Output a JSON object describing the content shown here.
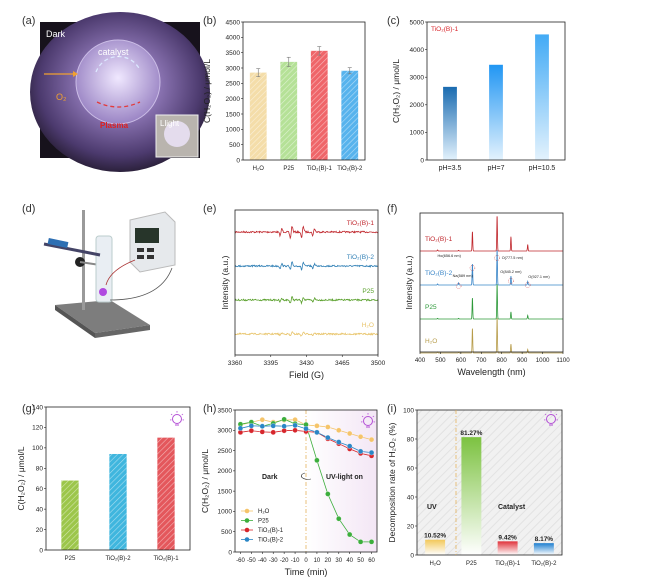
{
  "panel_labels": [
    "(a)",
    "(b)",
    "(c)",
    "(d)",
    "(e)",
    "(f)",
    "(g)",
    "(h)",
    "(i)"
  ],
  "photo_a": {
    "labels": {
      "dark": "Dark",
      "catalyst": "catalyst",
      "o2": "O₂",
      "plasma": "Plasma",
      "inset": "Llight"
    }
  },
  "chart_data": [
    {
      "id": "b",
      "type": "bar",
      "ylabel": "C(H₂O₂) / μmol/L",
      "categories": [
        "H₂O",
        "P25",
        "TiO₂(B)-1",
        "TiO₂(B)-2"
      ],
      "values": [
        2850,
        3200,
        3560,
        2910
      ],
      "errors": [
        130,
        150,
        140,
        100
      ],
      "colors": [
        "#f2d79a",
        "#a8dc85",
        "#ec4a4f",
        "#3aa6ea"
      ],
      "ylim": [
        0,
        4500
      ],
      "yticks": [
        0,
        500,
        1000,
        1500,
        2000,
        2500,
        3000,
        3500,
        4000,
        4500
      ]
    },
    {
      "id": "c",
      "type": "bar",
      "ylabel": "C(H₂O₂) / μmol/L",
      "annotation": "TiO₂(B)-1",
      "annotation_color": "#d9262c",
      "categories": [
        "pH=3.5",
        "pH=7",
        "pH=10.5"
      ],
      "values": [
        2650,
        3450,
        4550
      ],
      "colors": [
        "#1a6bb0",
        "#2196f3",
        "#42aaf5"
      ],
      "ylim": [
        0,
        5000
      ],
      "yticks": [
        0,
        1000,
        2000,
        3000,
        4000,
        5000
      ]
    },
    {
      "id": "e",
      "type": "line",
      "xlabel": "Field (G)",
      "ylabel": "Intensity (a.u.)",
      "xlim": [
        3360,
        3500
      ],
      "xticks": [
        3360,
        3395,
        3430,
        3465,
        3500
      ],
      "peak_fields": [
        3405,
        3415,
        3426,
        3437
      ],
      "series": [
        {
          "name": "TiO₂(B)-1",
          "color": "#c0272d",
          "amplitude": 1.0
        },
        {
          "name": "TiO₂(B)-2",
          "color": "#2f7fb5",
          "amplitude": 0.6
        },
        {
          "name": "P25",
          "color": "#5aa02c",
          "amplitude": 0.5
        },
        {
          "name": "H₂O",
          "color": "#e8c46a",
          "amplitude": 0.35
        }
      ]
    },
    {
      "id": "f",
      "type": "line",
      "xlabel": "Wavelength (nm)",
      "ylabel": "Intensity (a.u.)",
      "xlim": [
        400,
        1100
      ],
      "xticks": [
        400,
        500,
        600,
        700,
        800,
        900,
        1000,
        1100
      ],
      "peaks_nm": [
        486,
        589,
        656.6,
        777.5,
        845.2,
        927.1
      ],
      "annotations": [
        "Hα(656.6 nm)",
        "O(777.5 nm)",
        "Na(589 nm)",
        "O(845.2 nm)",
        "O(927.1 nm)"
      ],
      "series": [
        {
          "name": "TiO₂(B)-1",
          "color": "#c0272d",
          "peak_heights": [
            0.03,
            0.02,
            0.55,
            1.0,
            0.4,
            0.18
          ]
        },
        {
          "name": "TiO₂(B)-2",
          "color": "#3a86c8",
          "peak_heights": [
            0.03,
            0.06,
            0.6,
            1.0,
            0.25,
            0.1
          ]
        },
        {
          "name": "P25",
          "color": "#2e9a3a",
          "peak_heights": [
            0.02,
            0.02,
            0.6,
            1.0,
            0.2,
            0.1
          ]
        },
        {
          "name": "H₂O",
          "color": "#b79c4a",
          "peak_heights": [
            0.03,
            0.02,
            0.7,
            1.0,
            0.25,
            0.1
          ]
        }
      ]
    },
    {
      "id": "g",
      "type": "bar",
      "ylabel": "C(H₂O₂) / μmol/L",
      "categories": [
        "P25",
        "TiO₂(B)-2",
        "TiO₂(B)-1"
      ],
      "values": [
        68,
        94,
        110
      ],
      "colors": [
        "#9cc64a",
        "#3fb6de",
        "#e4575c"
      ],
      "ylim": [
        0,
        140
      ],
      "yticks": [
        0,
        20,
        40,
        60,
        80,
        100,
        120,
        140
      ]
    },
    {
      "id": "h",
      "type": "line",
      "xlabel": "Time (min)",
      "ylabel": "C(H₂O₂) / μmol/L",
      "text_dark": "Dark",
      "text_light": "UV-light on",
      "x": [
        -60,
        -50,
        -40,
        -30,
        -20,
        -10,
        0,
        10,
        20,
        30,
        40,
        50,
        60
      ],
      "xticks": [
        -60,
        -50,
        -40,
        -30,
        -20,
        -10,
        0,
        10,
        20,
        30,
        40,
        50,
        60
      ],
      "xlim": [
        -65,
        65
      ],
      "ylim": [
        0,
        3500
      ],
      "yticks": [
        0,
        500,
        1000,
        1500,
        2000,
        2500,
        3000,
        3500
      ],
      "legend": "bottom-left",
      "series": [
        {
          "name": "H₂O",
          "color": "#f5c46a",
          "values": [
            3130,
            3200,
            3260,
            3200,
            3250,
            3260,
            3130,
            3110,
            3080,
            3000,
            2920,
            2840,
            2770
          ]
        },
        {
          "name": "P25",
          "color": "#3cae3c",
          "values": [
            3150,
            3200,
            3100,
            3170,
            3270,
            3160,
            3140,
            2260,
            1430,
            820,
            430,
            250,
            250
          ]
        },
        {
          "name": "TiO₂(B)-1",
          "color": "#d7262c",
          "values": [
            2950,
            2990,
            2960,
            2950,
            2990,
            3000,
            2970,
            2950,
            2790,
            2670,
            2540,
            2430,
            2370
          ]
        },
        {
          "name": "TiO₂(B)-2",
          "color": "#2a86c6",
          "values": [
            3050,
            3110,
            3100,
            3110,
            3100,
            3120,
            3040,
            2950,
            2820,
            2710,
            2610,
            2480,
            2450
          ]
        }
      ]
    },
    {
      "id": "i",
      "type": "bar",
      "ylabel": "Decomposition rate of H₂O₂ (%)",
      "text_uv": "UV",
      "text_catalyst": "Catalyst",
      "categories": [
        "H₂O",
        "P25",
        "TiO₂(B)-1",
        "TiO₂(B)-2"
      ],
      "values": [
        10.52,
        81.27,
        9.42,
        8.17
      ],
      "data_labels": [
        "10.52%",
        "81.27%",
        "9.42%",
        "8.17%"
      ],
      "colors": [
        "#f2c85a",
        "#7cc240",
        "#e0333b",
        "#1e7fd0"
      ],
      "ylim": [
        0,
        100
      ],
      "yticks": [
        0,
        20,
        40,
        60,
        80,
        100
      ]
    }
  ]
}
